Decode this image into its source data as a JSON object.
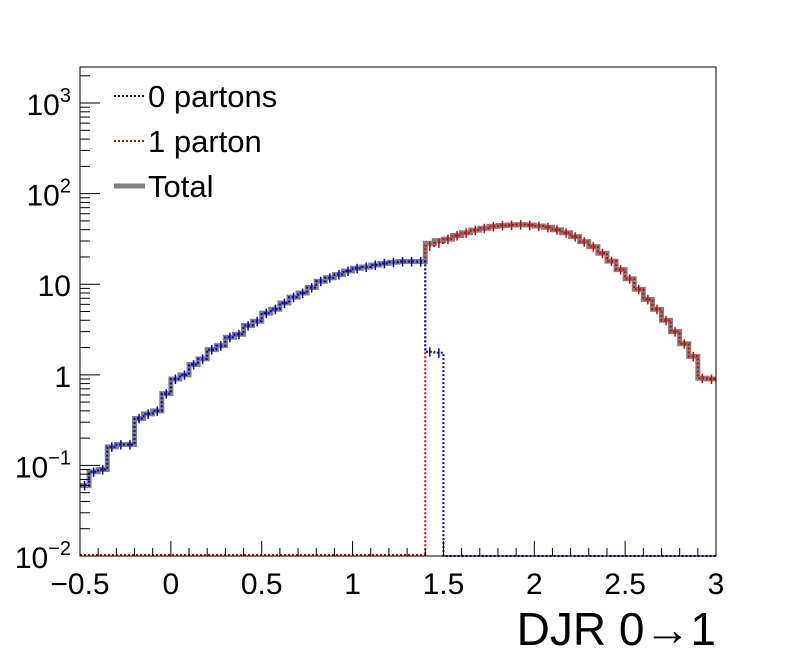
{
  "chart_data": {
    "type": "line",
    "title": "",
    "xlabel": "DJR 0→1",
    "ylabel": "",
    "xlim": [
      -0.5,
      3.0
    ],
    "ylim": [
      0.01,
      2500
    ],
    "yscale": "log",
    "grid": false,
    "legend_position": "top-left",
    "x_ticks": [
      {
        "value": -0.5,
        "label": "−0.5"
      },
      {
        "value": 0,
        "label": "0"
      },
      {
        "value": 0.5,
        "label": "0.5"
      },
      {
        "value": 1,
        "label": "1"
      },
      {
        "value": 1.5,
        "label": "1.5"
      },
      {
        "value": 2,
        "label": "2"
      },
      {
        "value": 2.5,
        "label": "2.5"
      },
      {
        "value": 3,
        "label": "3"
      }
    ],
    "y_ticks": [
      {
        "value": 0.01,
        "base": "10",
        "exp": "−2"
      },
      {
        "value": 0.1,
        "base": "10",
        "exp": "−1"
      },
      {
        "value": 1,
        "base": "1",
        "exp": ""
      },
      {
        "value": 10,
        "base": "10",
        "exp": ""
      },
      {
        "value": 100,
        "base": "10",
        "exp": "2"
      },
      {
        "value": 1000,
        "base": "10",
        "exp": "3"
      }
    ],
    "bin_width": 0.05,
    "series": [
      {
        "name": "0 partons",
        "color": "#0000cc",
        "style": "dotted",
        "x": [
          -0.5,
          -0.45,
          -0.4,
          -0.35,
          -0.3,
          -0.25,
          -0.2,
          -0.15,
          -0.1,
          -0.05,
          0.0,
          0.05,
          0.1,
          0.15,
          0.2,
          0.25,
          0.3,
          0.35,
          0.4,
          0.45,
          0.5,
          0.55,
          0.6,
          0.65,
          0.7,
          0.75,
          0.8,
          0.85,
          0.9,
          0.95,
          1.0,
          1.05,
          1.1,
          1.15,
          1.2,
          1.25,
          1.3,
          1.35,
          1.4,
          1.45
        ],
        "values": [
          0.06,
          0.085,
          0.09,
          0.16,
          0.17,
          0.17,
          0.33,
          0.37,
          0.4,
          0.62,
          0.9,
          1.0,
          1.3,
          1.5,
          1.9,
          2.1,
          2.6,
          2.8,
          3.5,
          3.9,
          4.8,
          5.3,
          6.2,
          7.2,
          8.0,
          9.2,
          10.8,
          11.8,
          12.8,
          14.0,
          15.0,
          15.5,
          16.3,
          17.0,
          17.5,
          17.8,
          17.8,
          17.8,
          1.8,
          1.75
        ]
      },
      {
        "name": "1 parton",
        "color": "#dd0000",
        "style": "dotted",
        "x": [
          1.4,
          1.45,
          1.5,
          1.55,
          1.6,
          1.65,
          1.7,
          1.75,
          1.8,
          1.85,
          1.9,
          1.95,
          2.0,
          2.05,
          2.1,
          2.15,
          2.2,
          2.25,
          2.3,
          2.35,
          2.4,
          2.45,
          2.5,
          2.55,
          2.6,
          2.65,
          2.7,
          2.75,
          2.8,
          2.85,
          2.9,
          2.95
        ],
        "values": [
          26.5,
          28.5,
          31.5,
          34.5,
          37.0,
          39.5,
          41.5,
          43.5,
          44.5,
          45.0,
          45.5,
          45.0,
          44.0,
          42.5,
          40.0,
          37.0,
          33.5,
          29.5,
          26.0,
          22.0,
          18.0,
          14.5,
          11.5,
          8.8,
          6.8,
          5.3,
          4.0,
          3.0,
          2.2,
          1.6,
          0.92,
          0.9
        ]
      },
      {
        "name": "Total",
        "color": "#808080",
        "style": "solid",
        "x": [
          -0.5,
          -0.45,
          -0.4,
          -0.35,
          -0.3,
          -0.25,
          -0.2,
          -0.15,
          -0.1,
          -0.05,
          0.0,
          0.05,
          0.1,
          0.15,
          0.2,
          0.25,
          0.3,
          0.35,
          0.4,
          0.45,
          0.5,
          0.55,
          0.6,
          0.65,
          0.7,
          0.75,
          0.8,
          0.85,
          0.9,
          0.95,
          1.0,
          1.05,
          1.1,
          1.15,
          1.2,
          1.25,
          1.3,
          1.35,
          1.4,
          1.45,
          1.5,
          1.55,
          1.6,
          1.65,
          1.7,
          1.75,
          1.8,
          1.85,
          1.9,
          1.95,
          2.0,
          2.05,
          2.1,
          2.15,
          2.2,
          2.25,
          2.3,
          2.35,
          2.4,
          2.45,
          2.5,
          2.55,
          2.6,
          2.65,
          2.7,
          2.75,
          2.8,
          2.85,
          2.9,
          2.95
        ],
        "values": [
          0.06,
          0.085,
          0.09,
          0.16,
          0.17,
          0.17,
          0.33,
          0.37,
          0.4,
          0.62,
          0.9,
          1.0,
          1.3,
          1.5,
          1.9,
          2.1,
          2.6,
          2.8,
          3.5,
          3.9,
          4.8,
          5.3,
          6.2,
          7.2,
          8.0,
          9.2,
          10.8,
          11.8,
          12.8,
          14.0,
          15.0,
          15.5,
          16.3,
          17.0,
          17.5,
          17.8,
          17.8,
          17.8,
          28.3,
          30.25,
          31.5,
          34.5,
          37.0,
          39.5,
          41.5,
          43.5,
          44.5,
          45.0,
          45.5,
          45.0,
          44.0,
          42.5,
          40.0,
          37.0,
          33.5,
          29.5,
          26.0,
          22.0,
          18.0,
          14.5,
          11.5,
          8.8,
          6.8,
          5.3,
          4.0,
          3.0,
          2.2,
          1.6,
          0.92,
          0.9
        ]
      }
    ],
    "legend": [
      {
        "label": "0 partons",
        "color": "#0000cc",
        "style": "dotted"
      },
      {
        "label": "1 parton",
        "color": "#dd0000",
        "style": "dotted"
      },
      {
        "label": "Total",
        "color": "#808080",
        "style": "solid"
      }
    ]
  }
}
